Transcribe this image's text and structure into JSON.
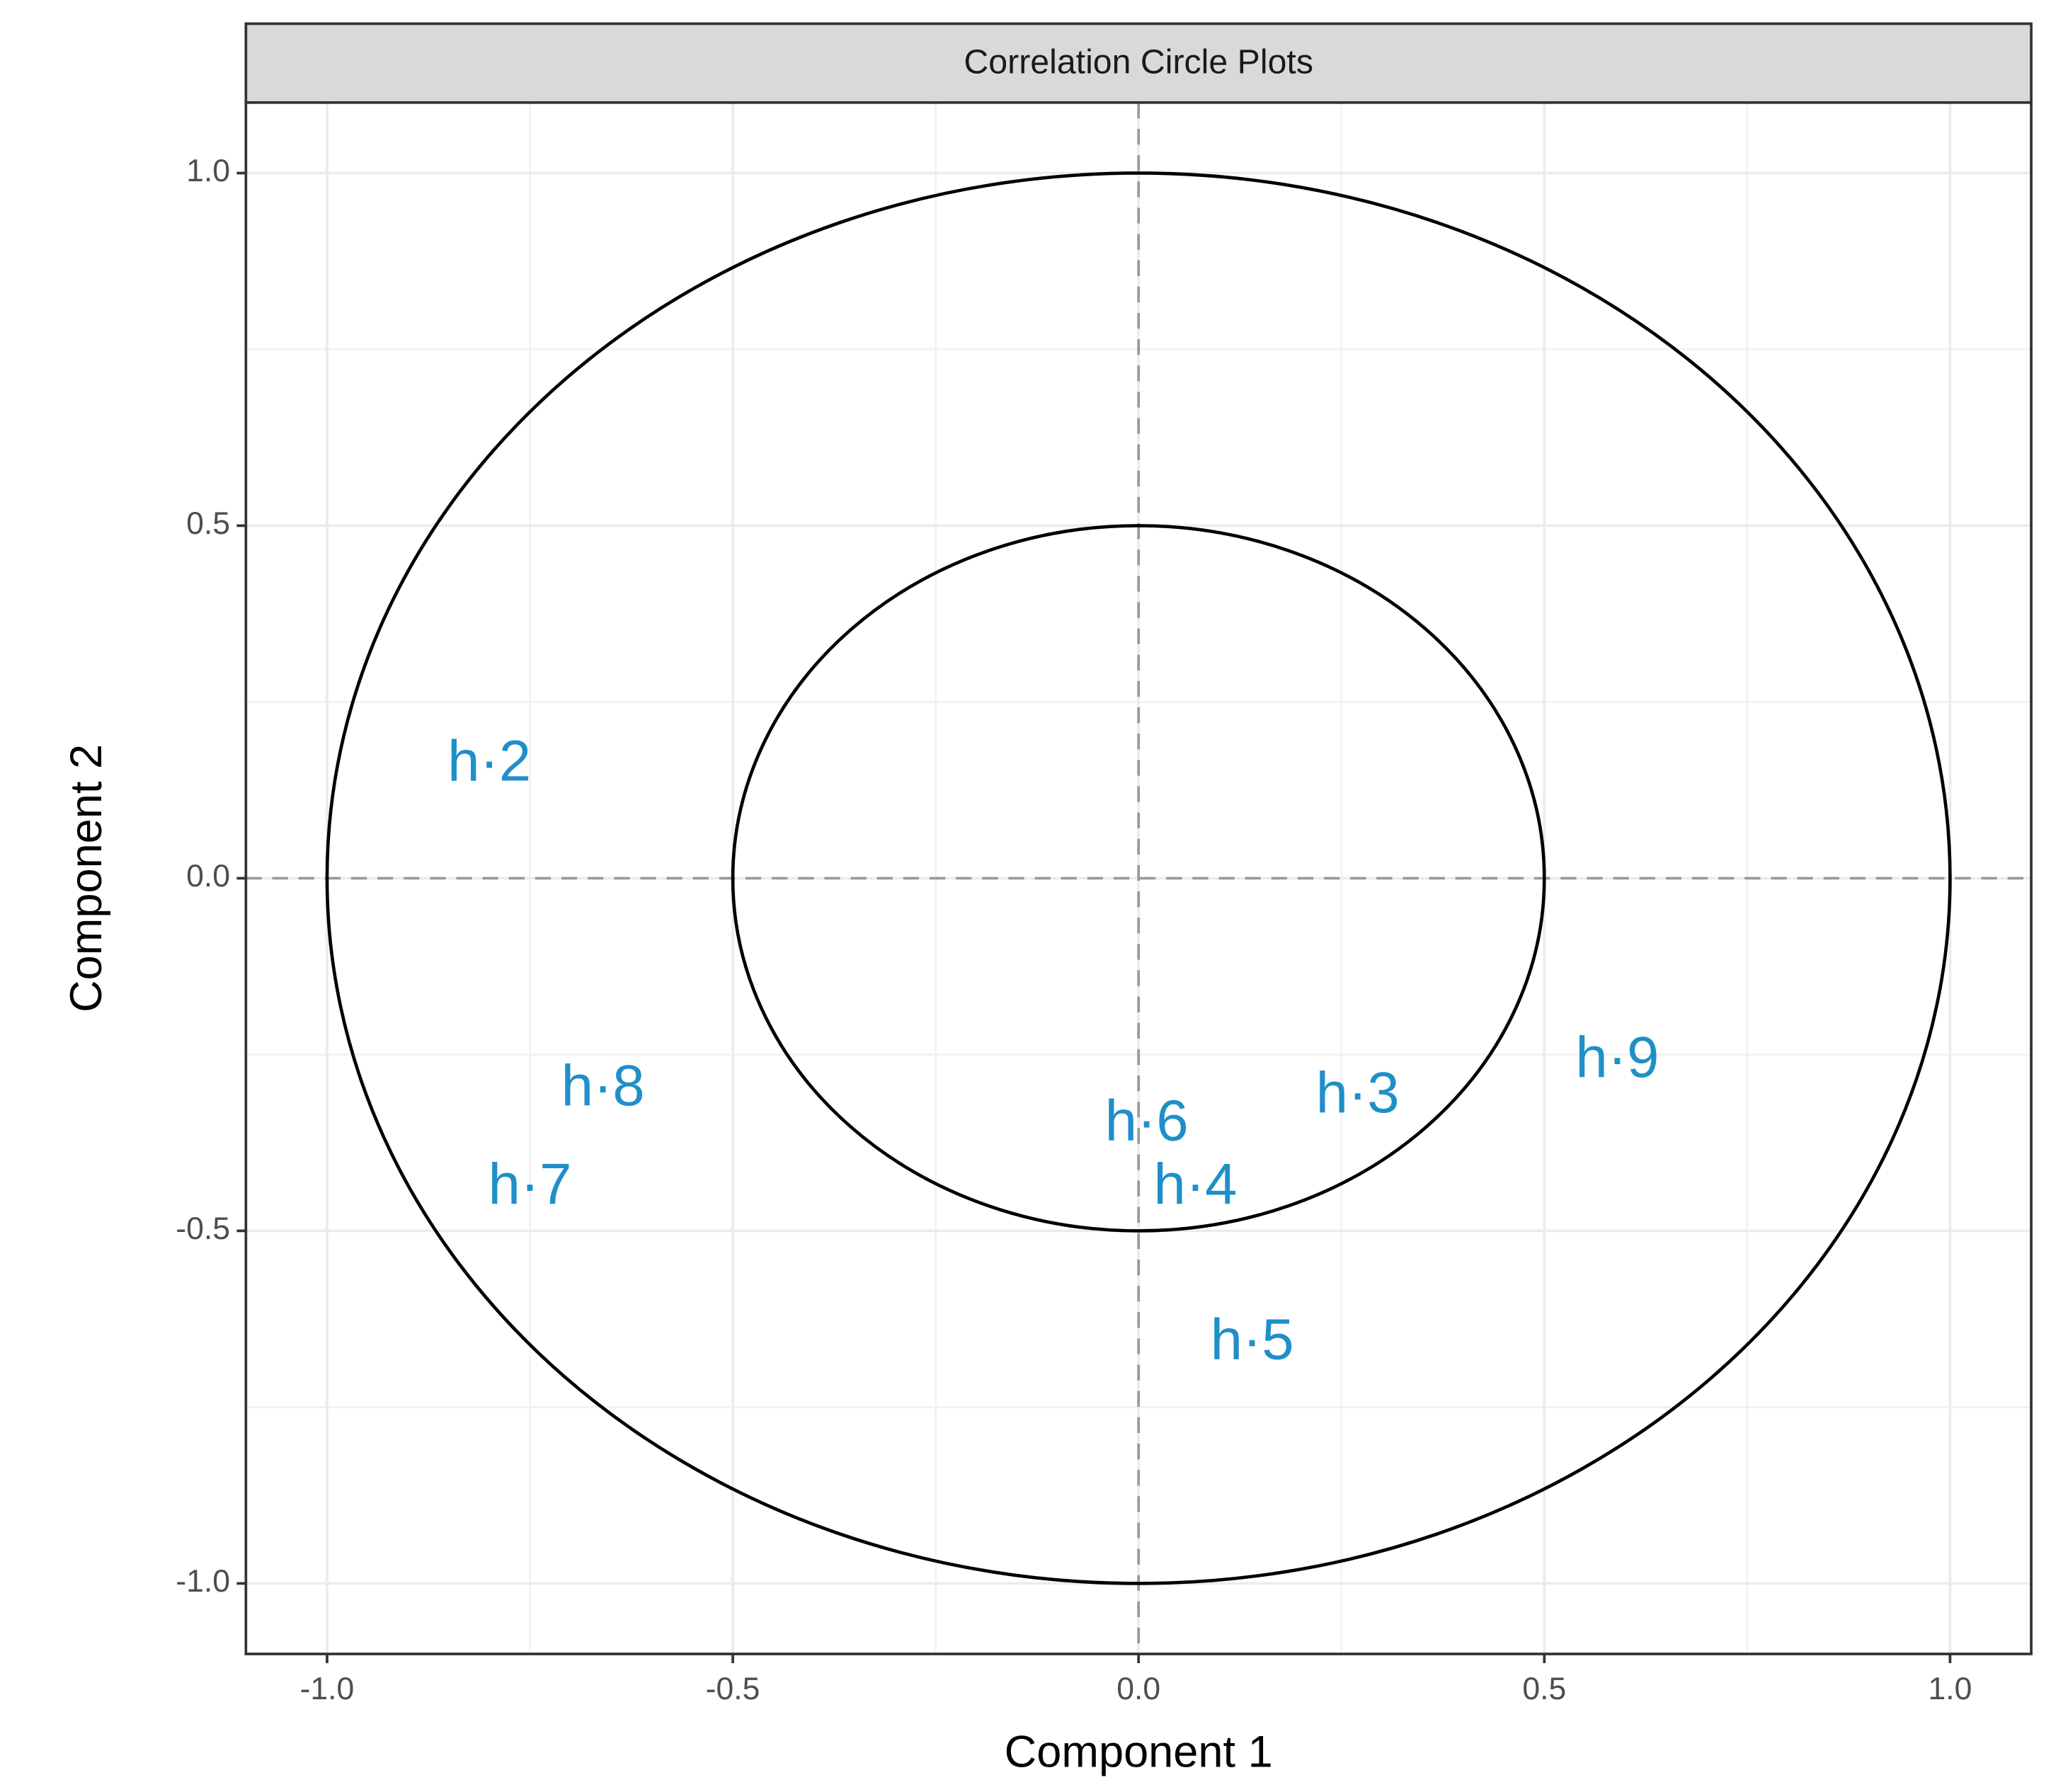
{
  "chart_data": {
    "type": "scatter",
    "title": "Correlation Circle Plots",
    "x_label": "Component 1",
    "y_label": "Component 2",
    "labels": [
      "h·2",
      "h·8",
      "h·7",
      "h·6",
      "h·4",
      "h·3",
      "h·9",
      "h·5"
    ],
    "x": [
      -0.8,
      -0.66,
      -0.75,
      0.01,
      0.07,
      0.27,
      0.59,
      0.14
    ],
    "values": [
      0.16,
      -0.3,
      -0.44,
      -0.35,
      -0.44,
      -0.31,
      -0.26,
      -0.66
    ],
    "color": "#1f8fc8",
    "circles": [
      1,
      0.5
    ],
    "reference_x": 0,
    "reference_y": 0,
    "xlim": [
      -1.1,
      1.1
    ],
    "ylim": [
      -1.1,
      1.1
    ],
    "xticks": [
      {
        "value": -1,
        "label": "-1.0"
      },
      {
        "value": -0.5,
        "label": "-0.5"
      },
      {
        "value": 0,
        "label": "0.0"
      },
      {
        "value": 0.5,
        "label": "0.5"
      },
      {
        "value": 1,
        "label": "1.0"
      }
    ],
    "yticks": [
      {
        "value": -1,
        "label": "-1.0"
      },
      {
        "value": -0.5,
        "label": "-0.5"
      },
      {
        "value": 0,
        "label": "0.0"
      },
      {
        "value": 0.5,
        "label": "0.5"
      },
      {
        "value": 1,
        "label": "1.0"
      }
    ],
    "minor_ticks": [
      -0.75,
      -0.25,
      0.25,
      0.75
    ],
    "grid": true
  }
}
